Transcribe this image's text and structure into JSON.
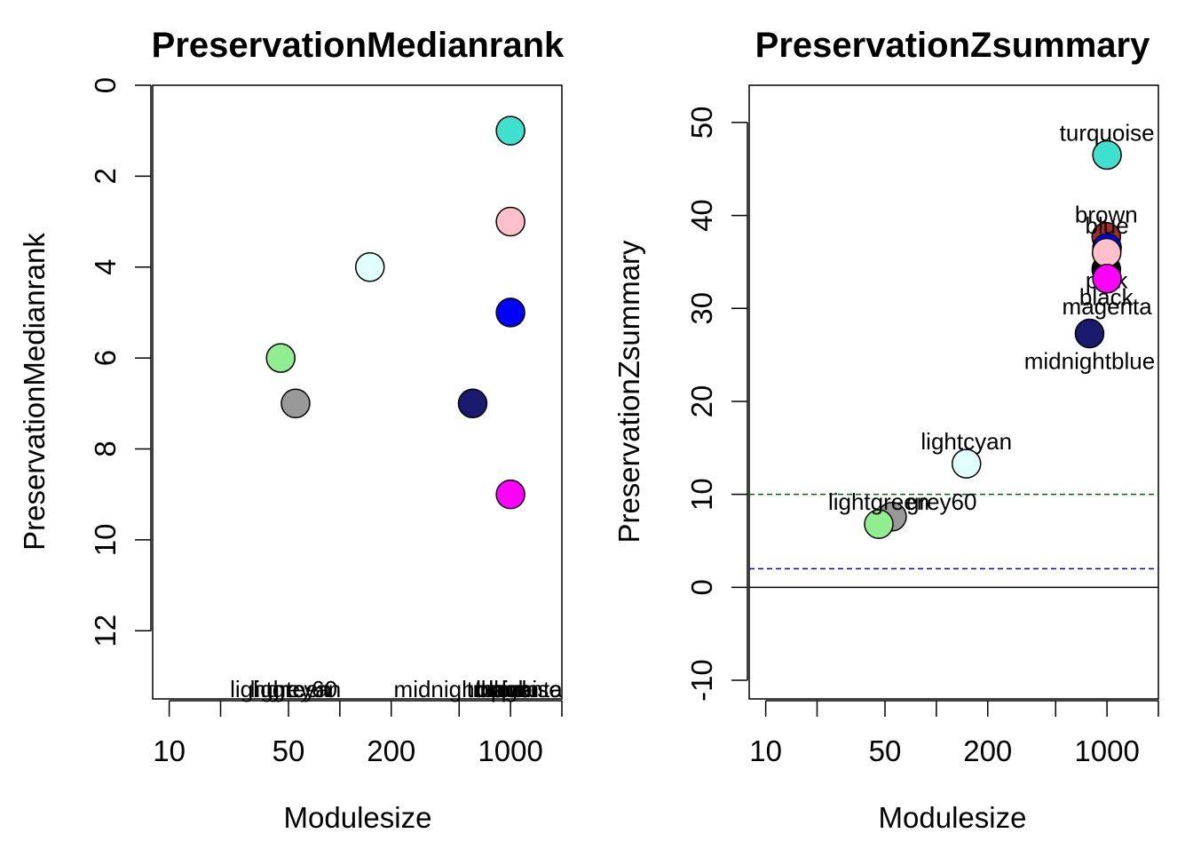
{
  "chart_data": [
    {
      "type": "scatter",
      "title": "PreservationMedianrank",
      "xlabel": "Modulesize",
      "ylabel": "PreservationMedianrank",
      "x_scale": "log",
      "y_reversed": true,
      "xlim": [
        8,
        2000
      ],
      "ylim": [
        0,
        13.5
      ],
      "x_ticks": [
        10,
        20,
        50,
        100,
        200,
        500,
        1000,
        2000
      ],
      "x_tick_labels": [
        "10",
        "",
        "50",
        "",
        "200",
        "",
        "1000",
        ""
      ],
      "y_ticks": [
        0,
        2,
        4,
        6,
        8,
        10,
        12
      ],
      "y_tick_labels": [
        "0",
        "2",
        "4",
        "6",
        "8",
        "10",
        "12"
      ],
      "grid": false,
      "points": [
        {
          "label": "turquoise",
          "x": 1000,
          "y": 1,
          "color": "#40e0d0"
        },
        {
          "label": "pink",
          "x": 1000,
          "y": 3,
          "color": "#ffc0cb"
        },
        {
          "label": "lightcyan",
          "x": 150,
          "y": 4,
          "color": "#e0ffff"
        },
        {
          "label": "blue",
          "x": 1000,
          "y": 5,
          "color": "#0000ff"
        },
        {
          "label": "lightgreen",
          "x": 45,
          "y": 6,
          "color": "#90ee90"
        },
        {
          "label": "grey60",
          "x": 55,
          "y": 7,
          "color": "#999999"
        },
        {
          "label": "midnightblue",
          "x": 600,
          "y": 7,
          "color": "#191970"
        },
        {
          "label": "magenta",
          "x": 1000,
          "y": 9,
          "color": "#ff00ff"
        }
      ],
      "bottom_labels": [
        {
          "text": "lightgreen",
          "x": 45
        },
        {
          "text": "lightcyan",
          "x": 55
        },
        {
          "text": "grey60",
          "x": 60
        },
        {
          "text": "midnightblue",
          "x": 500
        },
        {
          "text": "black",
          "x": 900
        },
        {
          "text": "brown",
          "x": 960
        },
        {
          "text": "blue",
          "x": 1000
        },
        {
          "text": "pink",
          "x": 1020
        },
        {
          "text": "turquoise",
          "x": 1050
        },
        {
          "text": "magenta",
          "x": 1100
        }
      ]
    },
    {
      "type": "scatter",
      "title": "PreservationZsummary",
      "xlabel": "Modulesize",
      "ylabel": "PreservationZsummary",
      "x_scale": "log",
      "xlim": [
        8,
        2000
      ],
      "ylim": [
        -12,
        54
      ],
      "x_ticks": [
        10,
        20,
        50,
        100,
        200,
        500,
        1000,
        2000
      ],
      "x_tick_labels": [
        "10",
        "",
        "50",
        "",
        "200",
        "",
        "1000",
        ""
      ],
      "y_ticks": [
        -10,
        0,
        10,
        20,
        30,
        40,
        50
      ],
      "y_tick_labels": [
        "-10",
        "0",
        "10",
        "20",
        "30",
        "40",
        "50"
      ],
      "grid": false,
      "reference_lines": [
        {
          "y": 0,
          "color": "#000000",
          "dash": "solid"
        },
        {
          "y": 2,
          "color": "#0000ff",
          "dash": "dashed"
        },
        {
          "y": 10,
          "color": "#006400",
          "dash": "dashed"
        }
      ],
      "points": [
        {
          "label": "turquoise",
          "x": 1000,
          "y": 46.5,
          "color": "#40e0d0",
          "label_pos": "above"
        },
        {
          "label": "brown",
          "x": 990,
          "y": 37.7,
          "color": "#a52a2a",
          "label_pos": "above"
        },
        {
          "label": "blue",
          "x": 1000,
          "y": 36.5,
          "color": "#0000ff",
          "label_pos": "above"
        },
        {
          "label": "black",
          "x": 990,
          "y": 34.2,
          "color": "#000000",
          "label_pos": "below"
        },
        {
          "label": "pink",
          "x": 995,
          "y": 36.0,
          "color": "#ffc0cb",
          "label_pos": "below"
        },
        {
          "label": "magenta",
          "x": 1000,
          "y": 33.2,
          "color": "#ff00ff",
          "label_pos": "below"
        },
        {
          "label": "midnightblue",
          "x": 790,
          "y": 27.3,
          "color": "#191970",
          "label_pos": "below"
        },
        {
          "label": "lightcyan",
          "x": 150,
          "y": 13.3,
          "color": "#e0ffff",
          "label_pos": "above"
        },
        {
          "label": "grey60",
          "x": 55,
          "y": 7.6,
          "color": "#999999",
          "label_pos": "right"
        },
        {
          "label": "lightgreen",
          "x": 46,
          "y": 6.8,
          "color": "#90ee90",
          "label_pos": "above"
        }
      ]
    }
  ]
}
